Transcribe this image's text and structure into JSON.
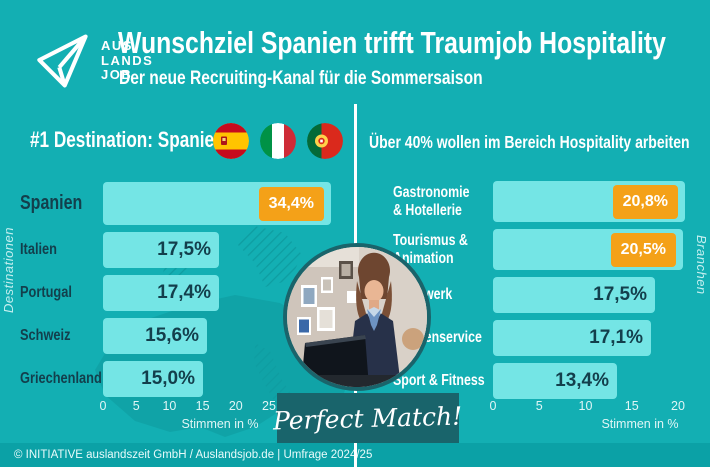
{
  "colors": {
    "background": "#13AFB3",
    "bar_fill": "#74E5E5",
    "dark_text": "#133F4C",
    "accent_orange": "#F4A118",
    "dark_teal": "#1A646B",
    "footer_bg": "#0BA1A6",
    "white": "#FFFFFF"
  },
  "header": {
    "logo_lines": [
      "AUS",
      "LANDS",
      "JOB"
    ],
    "title": "Wunschziel Spanien trifft Traumjob Hospitality",
    "subtitle": "Der neue Recruiting-Kanal für die Sommersaison"
  },
  "left_panel": {
    "heading": "#1 Destination: Spanien",
    "flags": [
      "flag-spain",
      "flag-italy",
      "flag-portugal"
    ],
    "side_label": "Destinationen"
  },
  "right_panel": {
    "heading": "Über 40% wollen im Bereich Hospitality arbeiten",
    "side_label": "Branchen"
  },
  "center": {
    "badge_text": "Perfect Match!",
    "photo_subject": "Rezeptionistin am Hotelempfang"
  },
  "footer": {
    "text": "© INITIATIVE auslandszeit GmbH / Auslandsjob.de | Umfrage 2024/25"
  },
  "chart_data": [
    {
      "type": "bar",
      "orientation": "horizontal",
      "title": "#1 Destination: Spanien",
      "ylabel": "Destinationen",
      "xlabel": "Stimmen in %",
      "xlim": [
        0,
        25
      ],
      "xticks": [
        0,
        5,
        10,
        15,
        20,
        25
      ],
      "grid": false,
      "categories": [
        "Spanien",
        "Italien",
        "Portugal",
        "Schweiz",
        "Griechenland"
      ],
      "categories_display": [
        "Spanien",
        "Italien",
        "Portugal",
        "Schweiz",
        "Griechenland"
      ],
      "values": [
        34.4,
        17.5,
        17.4,
        15.6,
        15.0
      ],
      "value_labels": [
        "34,4%",
        "17,5%",
        "17,4%",
        "15,6%",
        "15,0%"
      ],
      "highlight_indices": [
        0
      ],
      "bar_color": "#74E5E5",
      "highlight_badge_color": "#F4A118"
    },
    {
      "type": "bar",
      "orientation": "horizontal",
      "title": "Über 40% wollen im Bereich Hospitality arbeiten",
      "ylabel": "Branchen",
      "xlabel": "Stimmen in %",
      "xlim": [
        0,
        20
      ],
      "xticks": [
        0,
        5,
        10,
        15,
        20
      ],
      "grid": false,
      "categories": [
        "Gastronomie & Hotellerie",
        "Tourismus & Animation",
        "Handwerk",
        "Kundenservice",
        "Sport & Fitness"
      ],
      "categories_display": [
        "Gastronomie\n& Hotellerie",
        "Tourismus &\nAnimation",
        "Handwerk",
        "Kundenservice",
        "Sport & Fitness"
      ],
      "values": [
        20.8,
        20.5,
        17.5,
        17.1,
        13.4
      ],
      "value_labels": [
        "20,8%",
        "20,5%",
        "17,5%",
        "17,1%",
        "13,4%"
      ],
      "highlight_indices": [
        0,
        1
      ],
      "bar_color": "#74E5E5",
      "highlight_badge_color": "#F4A118"
    }
  ]
}
